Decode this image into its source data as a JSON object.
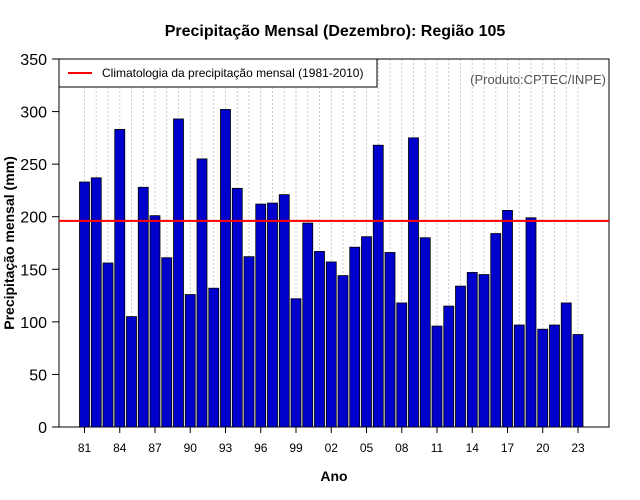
{
  "chart_data": {
    "type": "bar",
    "title": "Precipitação Mensal (Dezembro): Região 105",
    "xlabel": "Ano",
    "ylabel": "Precipitação mensal (mm)",
    "ylim": [
      0,
      350
    ],
    "yticks": [
      0,
      50,
      100,
      150,
      200,
      250,
      300,
      350
    ],
    "xtick_labels": [
      "81",
      "84",
      "87",
      "90",
      "93",
      "96",
      "99",
      "02",
      "05",
      "08",
      "11",
      "14",
      "17",
      "20",
      "23"
    ],
    "categories": [
      "1981",
      "1982",
      "1983",
      "1984",
      "1985",
      "1986",
      "1987",
      "1988",
      "1989",
      "1990",
      "1991",
      "1992",
      "1993",
      "1994",
      "1995",
      "1996",
      "1997",
      "1998",
      "1999",
      "2000",
      "2001",
      "2002",
      "2003",
      "2004",
      "2005",
      "2006",
      "2007",
      "2008",
      "2009",
      "2010",
      "2011",
      "2012",
      "2013",
      "2014",
      "2015",
      "2016",
      "2017",
      "2018",
      "2019",
      "2020",
      "2021",
      "2022",
      "2023"
    ],
    "values": [
      233,
      237,
      156,
      283,
      105,
      228,
      201,
      161,
      293,
      126,
      255,
      132,
      302,
      227,
      162,
      212,
      213,
      221,
      122,
      194,
      167,
      157,
      144,
      171,
      181,
      268,
      166,
      118,
      275,
      180,
      96,
      115,
      134,
      147,
      145,
      184,
      206,
      97,
      199,
      93,
      97,
      118,
      88
    ],
    "bar_color": "#0000cc",
    "reference_line": {
      "value": 196,
      "color": "#ff0000",
      "label": "Climatologia da precipitação mensal (1981-2010)"
    },
    "legend_position": "top-left",
    "grid": "vertical dotted",
    "credit": "(Produto:CPTEC/INPE)"
  }
}
